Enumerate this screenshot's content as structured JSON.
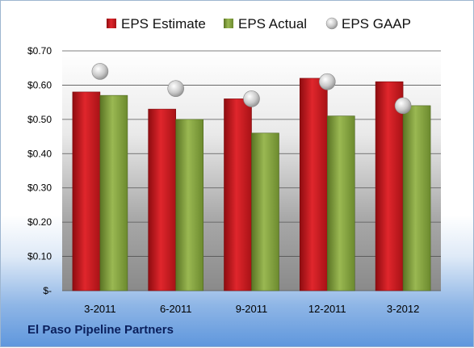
{
  "company": "El Paso Pipeline Partners",
  "chart_data": {
    "type": "bar",
    "categories": [
      "3-2011",
      "6-2011",
      "9-2011",
      "12-2011",
      "3-2012"
    ],
    "series": [
      {
        "name": "EPS Estimate",
        "kind": "bar",
        "color": "#c8181e",
        "values": [
          0.58,
          0.53,
          0.56,
          0.62,
          0.61
        ]
      },
      {
        "name": "EPS Actual",
        "kind": "bar",
        "color": "#7c9a3a",
        "values": [
          0.57,
          0.5,
          0.46,
          0.51,
          0.54
        ]
      },
      {
        "name": "EPS GAAP",
        "kind": "marker",
        "color": "#c8c8c8",
        "values": [
          0.64,
          0.59,
          0.56,
          0.61,
          0.54
        ]
      }
    ],
    "yticks": [
      "$-",
      "$0.10",
      "$0.20",
      "$0.30",
      "$0.40",
      "$0.50",
      "$0.60",
      "$0.70"
    ],
    "ylim": [
      0,
      0.7
    ],
    "grid": true,
    "legend_position": "top"
  }
}
